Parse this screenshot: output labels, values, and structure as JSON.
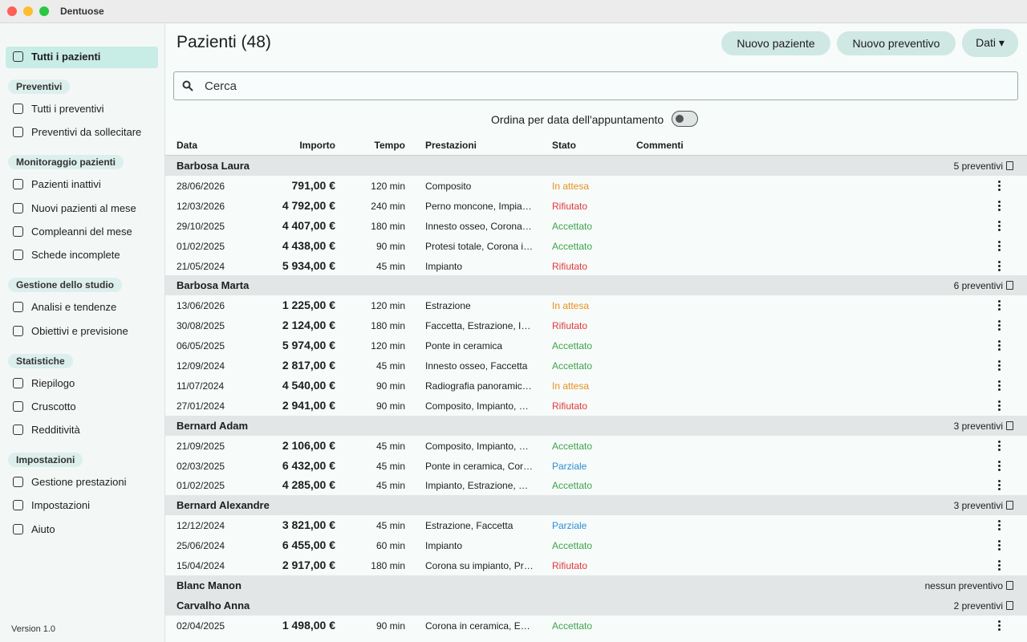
{
  "window": {
    "title": "Dentuose"
  },
  "sidebar": {
    "top_item": "Tutti i pazienti",
    "sections": [
      {
        "label": "Preventivi",
        "items": [
          "Tutti i preventivi",
          "Preventivi da sollecitare"
        ]
      },
      {
        "label": "Monitoraggio pazienti",
        "items": [
          "Pazienti inattivi",
          "Nuovi pazienti al mese",
          "Compleanni del mese",
          "Schede incomplete"
        ]
      },
      {
        "label": "Gestione dello studio",
        "items": [
          "Analisi e tendenze",
          "Obiettivi e previsione"
        ]
      },
      {
        "label": "Statistiche",
        "items": [
          "Riepilogo",
          "Cruscotto",
          "Redditività"
        ]
      },
      {
        "label": "Impostazioni",
        "items": [
          "Gestione prestazioni",
          "Impostazioni",
          "Aiuto"
        ]
      }
    ],
    "version": "Version 1.0"
  },
  "header": {
    "title": "Pazienti (48)",
    "buttons": [
      "Nuovo paziente",
      "Nuovo preventivo",
      "Dati"
    ]
  },
  "search": {
    "placeholder": "Cerca"
  },
  "sort_toggle": {
    "label": "Ordina per data dell'appuntamento"
  },
  "table": {
    "columns": [
      "Data",
      "Importo",
      "Tempo",
      "Prestazioni",
      "Stato",
      "Commenti"
    ],
    "status_colors": {
      "In attesa": "#e8901c",
      "Rifiutato": "#e03a3a",
      "Accettato": "#3fa34d",
      "Parziale": "#2b8fd6"
    },
    "groups": [
      {
        "name": "Barbosa Laura",
        "count": "5 preventivi",
        "rows": [
          [
            "28/06/2026",
            "791,00 €",
            "120 min",
            "Composito",
            "In attesa"
          ],
          [
            "12/03/2026",
            "4 792,00 €",
            "240 min",
            "Perno moncone, Impia…",
            "Rifiutato"
          ],
          [
            "29/10/2025",
            "4 407,00 €",
            "180 min",
            "Innesto osseo, Corona …",
            "Accettato"
          ],
          [
            "01/02/2025",
            "4 438,00 €",
            "90 min",
            "Protesi totale, Corona i…",
            "Accettato"
          ],
          [
            "21/05/2024",
            "5 934,00 €",
            "45 min",
            "Impianto",
            "Rifiutato"
          ]
        ]
      },
      {
        "name": "Barbosa Marta",
        "count": "6 preventivi",
        "rows": [
          [
            "13/06/2026",
            "1 225,00 €",
            "120 min",
            "Estrazione",
            "In attesa"
          ],
          [
            "30/08/2025",
            "2 124,00 €",
            "180 min",
            "Faccetta, Estrazione, I…",
            "Rifiutato"
          ],
          [
            "06/05/2025",
            "5 974,00 €",
            "120 min",
            "Ponte in ceramica",
            "Accettato"
          ],
          [
            "12/09/2024",
            "2 817,00 €",
            "45 min",
            "Innesto osseo, Faccetta",
            "Accettato"
          ],
          [
            "11/07/2024",
            "4 540,00 €",
            "90 min",
            "Radiografia panoramic…",
            "In attesa"
          ],
          [
            "27/01/2024",
            "2 941,00 €",
            "90 min",
            "Composito, Impianto, E…",
            "Rifiutato"
          ]
        ]
      },
      {
        "name": "Bernard Adam",
        "count": "3 preventivi",
        "rows": [
          [
            "21/09/2025",
            "2 106,00 €",
            "45 min",
            "Composito, Impianto, E…",
            "Accettato"
          ],
          [
            "02/03/2025",
            "6 432,00 €",
            "45 min",
            "Ponte in ceramica, Cor…",
            "Parziale"
          ],
          [
            "01/02/2025",
            "4 285,00 €",
            "45 min",
            "Impianto, Estrazione, C…",
            "Accettato"
          ]
        ]
      },
      {
        "name": "Bernard Alexandre",
        "count": "3 preventivi",
        "rows": [
          [
            "12/12/2024",
            "3 821,00 €",
            "45 min",
            "Estrazione, Faccetta",
            "Parziale"
          ],
          [
            "25/06/2024",
            "6 455,00 €",
            "60 min",
            "Impianto",
            "Accettato"
          ],
          [
            "15/04/2024",
            "2 917,00 €",
            "180 min",
            "Corona su impianto, Pr…",
            "Rifiutato"
          ]
        ]
      },
      {
        "name": "Blanc Manon",
        "count": "nessun preventivo",
        "rows": []
      },
      {
        "name": "Carvalho Anna",
        "count": "2 preventivi",
        "rows": [
          [
            "02/04/2025",
            "1 498,00 €",
            "90 min",
            "Corona in ceramica, En…",
            "Accettato"
          ]
        ]
      }
    ]
  }
}
